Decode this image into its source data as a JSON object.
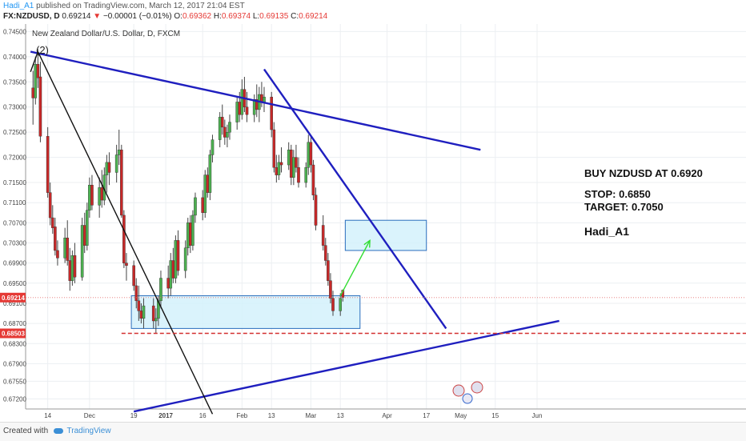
{
  "header": {
    "author": "Hadi_A1",
    "published_text": "published on TradingView.com, March 12, 2017 21:04 EST",
    "symbol": "FX:NZDUSD, D",
    "last": "0.69214",
    "change": "−0.00001 (−0.01%)",
    "o_label": "O:",
    "o": "0.69362",
    "h_label": "H:",
    "h": "0.69374",
    "l_label": "L:",
    "l": "0.69135",
    "c_label": "C:",
    "c": "0.69214"
  },
  "footer": {
    "created_with": "Created with",
    "brand": "TradingView"
  },
  "colors": {
    "bull": "#4caf50",
    "bear": "#c62828",
    "trend": "#1f1fbf",
    "zone_fill": "#d4f1fb",
    "zone_stroke": "#2a6ebd",
    "support_dash": "#d32f2f",
    "arrow": "#33dd33"
  },
  "chart_data": {
    "type": "candlestick",
    "title": "New Zealand Dollar/U.S. Dollar, D, FXCM",
    "ylim": [
      0.67,
      0.7465
    ],
    "y_ticks": [
      "0.74500",
      "0.74000",
      "0.73500",
      "0.73000",
      "0.72500",
      "0.72000",
      "0.71500",
      "0.71100",
      "0.70700",
      "0.70300",
      "0.69900",
      "0.69500",
      "0.69100",
      "0.68700",
      "0.68300",
      "0.67900",
      "0.67550",
      "0.67200"
    ],
    "x_ticks": [
      "14",
      "Dec",
      "19",
      "2017",
      "16",
      "Feb",
      "13",
      "Mar",
      "13",
      "Apr",
      "17",
      "May",
      "15",
      "Jun"
    ],
    "last_price": {
      "label": "0.69214",
      "value": 0.69214
    },
    "stop_price": {
      "label": "0.68503",
      "value": 0.68503
    },
    "candles": [
      {
        "date": "2016-11-08",
        "o": 0.7338,
        "h": 0.7372,
        "l": 0.7265,
        "c": 0.7318
      },
      {
        "date": "2016-11-09",
        "o": 0.7318,
        "h": 0.74,
        "l": 0.7305,
        "c": 0.7385
      },
      {
        "date": "2016-11-10",
        "o": 0.7385,
        "h": 0.7415,
        "l": 0.7338,
        "c": 0.7358
      },
      {
        "date": "2016-11-11",
        "o": 0.736,
        "h": 0.739,
        "l": 0.723,
        "c": 0.7242
      },
      {
        "date": "2016-11-14",
        "o": 0.7242,
        "h": 0.726,
        "l": 0.712,
        "c": 0.713
      },
      {
        "date": "2016-11-15",
        "o": 0.713,
        "h": 0.715,
        "l": 0.7065,
        "c": 0.708
      },
      {
        "date": "2016-11-16",
        "o": 0.708,
        "h": 0.7105,
        "l": 0.7048,
        "c": 0.706
      },
      {
        "date": "2016-11-17",
        "o": 0.7062,
        "h": 0.708,
        "l": 0.7005,
        "c": 0.7015
      },
      {
        "date": "2016-11-18",
        "o": 0.7015,
        "h": 0.7035,
        "l": 0.6985,
        "c": 0.7
      },
      {
        "date": "2016-11-21",
        "o": 0.7,
        "h": 0.706,
        "l": 0.699,
        "c": 0.704
      },
      {
        "date": "2016-11-22",
        "o": 0.704,
        "h": 0.7075,
        "l": 0.6985,
        "c": 0.6995
      },
      {
        "date": "2016-11-23",
        "o": 0.6995,
        "h": 0.702,
        "l": 0.6935,
        "c": 0.6955
      },
      {
        "date": "2016-11-24",
        "o": 0.6955,
        "h": 0.7015,
        "l": 0.6945,
        "c": 0.7005
      },
      {
        "date": "2016-11-25",
        "o": 0.7005,
        "h": 0.703,
        "l": 0.695,
        "c": 0.6962
      },
      {
        "date": "2016-11-28",
        "o": 0.6962,
        "h": 0.708,
        "l": 0.6955,
        "c": 0.7065
      },
      {
        "date": "2016-11-29",
        "o": 0.7065,
        "h": 0.709,
        "l": 0.701,
        "c": 0.7025
      },
      {
        "date": "2016-11-30",
        "o": 0.7025,
        "h": 0.711,
        "l": 0.7015,
        "c": 0.7095
      },
      {
        "date": "2016-12-01",
        "o": 0.7095,
        "h": 0.716,
        "l": 0.708,
        "c": 0.7145
      },
      {
        "date": "2016-12-02",
        "o": 0.7145,
        "h": 0.7165,
        "l": 0.7095,
        "c": 0.7105
      },
      {
        "date": "2016-12-05",
        "o": 0.7105,
        "h": 0.716,
        "l": 0.708,
        "c": 0.714
      },
      {
        "date": "2016-12-06",
        "o": 0.714,
        "h": 0.7175,
        "l": 0.71,
        "c": 0.7115
      },
      {
        "date": "2016-12-07",
        "o": 0.7115,
        "h": 0.718,
        "l": 0.7105,
        "c": 0.7165
      },
      {
        "date": "2016-12-08",
        "o": 0.7165,
        "h": 0.7205,
        "l": 0.713,
        "c": 0.719
      },
      {
        "date": "2016-12-09",
        "o": 0.719,
        "h": 0.721,
        "l": 0.7145,
        "c": 0.717
      },
      {
        "date": "2016-12-12",
        "o": 0.717,
        "h": 0.7225,
        "l": 0.715,
        "c": 0.7205
      },
      {
        "date": "2016-12-13",
        "o": 0.7205,
        "h": 0.7255,
        "l": 0.7185,
        "c": 0.7215
      },
      {
        "date": "2016-12-14",
        "o": 0.7215,
        "h": 0.7225,
        "l": 0.708,
        "c": 0.7085
      },
      {
        "date": "2016-12-15",
        "o": 0.7085,
        "h": 0.7095,
        "l": 0.698,
        "c": 0.699
      },
      {
        "date": "2016-12-16",
        "o": 0.699,
        "h": 0.701,
        "l": 0.6955,
        "c": 0.6985
      },
      {
        "date": "2016-12-19",
        "o": 0.6985,
        "h": 0.6995,
        "l": 0.6935,
        "c": 0.6945
      },
      {
        "date": "2016-12-20",
        "o": 0.6945,
        "h": 0.696,
        "l": 0.69,
        "c": 0.6915
      },
      {
        "date": "2016-12-21",
        "o": 0.6915,
        "h": 0.6945,
        "l": 0.6875,
        "c": 0.6895
      },
      {
        "date": "2016-12-22",
        "o": 0.6895,
        "h": 0.691,
        "l": 0.687,
        "c": 0.688
      },
      {
        "date": "2016-12-23",
        "o": 0.688,
        "h": 0.692,
        "l": 0.686,
        "c": 0.6905
      },
      {
        "date": "2016-12-27",
        "o": 0.6905,
        "h": 0.692,
        "l": 0.686,
        "c": 0.6875
      },
      {
        "date": "2016-12-28",
        "o": 0.6875,
        "h": 0.69,
        "l": 0.685,
        "c": 0.688
      },
      {
        "date": "2016-12-29",
        "o": 0.688,
        "h": 0.6925,
        "l": 0.6865,
        "c": 0.6915
      },
      {
        "date": "2016-12-30",
        "o": 0.6915,
        "h": 0.6975,
        "l": 0.69,
        "c": 0.696
      },
      {
        "date": "2017-01-02",
        "o": 0.696,
        "h": 0.6985,
        "l": 0.692,
        "c": 0.694
      },
      {
        "date": "2017-01-03",
        "o": 0.694,
        "h": 0.701,
        "l": 0.6925,
        "c": 0.6995
      },
      {
        "date": "2017-01-04",
        "o": 0.6995,
        "h": 0.702,
        "l": 0.695,
        "c": 0.696
      },
      {
        "date": "2017-01-05",
        "o": 0.696,
        "h": 0.7045,
        "l": 0.695,
        "c": 0.7035
      },
      {
        "date": "2017-01-06",
        "o": 0.7035,
        "h": 0.7055,
        "l": 0.6965,
        "c": 0.6975
      },
      {
        "date": "2017-01-09",
        "o": 0.6975,
        "h": 0.7035,
        "l": 0.696,
        "c": 0.702
      },
      {
        "date": "2017-01-10",
        "o": 0.702,
        "h": 0.708,
        "l": 0.7005,
        "c": 0.707
      },
      {
        "date": "2017-01-11",
        "o": 0.707,
        "h": 0.7085,
        "l": 0.701,
        "c": 0.7025
      },
      {
        "date": "2017-01-12",
        "o": 0.7025,
        "h": 0.7095,
        "l": 0.7015,
        "c": 0.7085
      },
      {
        "date": "2017-01-13",
        "o": 0.7085,
        "h": 0.713,
        "l": 0.707,
        "c": 0.712
      },
      {
        "date": "2017-01-16",
        "o": 0.712,
        "h": 0.7135,
        "l": 0.7075,
        "c": 0.709
      },
      {
        "date": "2017-01-17",
        "o": 0.709,
        "h": 0.7175,
        "l": 0.708,
        "c": 0.7165
      },
      {
        "date": "2017-01-18",
        "o": 0.7165,
        "h": 0.718,
        "l": 0.712,
        "c": 0.713
      },
      {
        "date": "2017-01-19",
        "o": 0.713,
        "h": 0.7215,
        "l": 0.7115,
        "c": 0.7205
      },
      {
        "date": "2017-01-20",
        "o": 0.7205,
        "h": 0.7245,
        "l": 0.719,
        "c": 0.7235
      },
      {
        "date": "2017-01-23",
        "o": 0.7235,
        "h": 0.729,
        "l": 0.722,
        "c": 0.728
      },
      {
        "date": "2017-01-24",
        "o": 0.728,
        "h": 0.7305,
        "l": 0.7245,
        "c": 0.726
      },
      {
        "date": "2017-01-25",
        "o": 0.726,
        "h": 0.7275,
        "l": 0.7225,
        "c": 0.724
      },
      {
        "date": "2017-01-26",
        "o": 0.724,
        "h": 0.7265,
        "l": 0.722,
        "c": 0.725
      },
      {
        "date": "2017-01-27",
        "o": 0.725,
        "h": 0.7285,
        "l": 0.7235,
        "c": 0.727
      },
      {
        "date": "2017-01-30",
        "o": 0.727,
        "h": 0.732,
        "l": 0.7255,
        "c": 0.731
      },
      {
        "date": "2017-01-31",
        "o": 0.731,
        "h": 0.733,
        "l": 0.727,
        "c": 0.7285
      },
      {
        "date": "2017-02-01",
        "o": 0.7285,
        "h": 0.7355,
        "l": 0.7275,
        "c": 0.7335
      },
      {
        "date": "2017-02-02",
        "o": 0.7335,
        "h": 0.736,
        "l": 0.729,
        "c": 0.73
      },
      {
        "date": "2017-02-03",
        "o": 0.73,
        "h": 0.733,
        "l": 0.727,
        "c": 0.7285
      },
      {
        "date": "2017-02-06",
        "o": 0.7285,
        "h": 0.7325,
        "l": 0.727,
        "c": 0.7315
      },
      {
        "date": "2017-02-07",
        "o": 0.7315,
        "h": 0.7345,
        "l": 0.728,
        "c": 0.7295
      },
      {
        "date": "2017-02-08",
        "o": 0.7295,
        "h": 0.734,
        "l": 0.727,
        "c": 0.7325
      },
      {
        "date": "2017-02-09",
        "o": 0.7325,
        "h": 0.735,
        "l": 0.73,
        "c": 0.731
      },
      {
        "date": "2017-02-10",
        "o": 0.731,
        "h": 0.734,
        "l": 0.729,
        "c": 0.732
      },
      {
        "date": "2017-02-13",
        "o": 0.732,
        "h": 0.733,
        "l": 0.724,
        "c": 0.7255
      },
      {
        "date": "2017-02-14",
        "o": 0.7255,
        "h": 0.727,
        "l": 0.717,
        "c": 0.718
      },
      {
        "date": "2017-02-15",
        "o": 0.718,
        "h": 0.7205,
        "l": 0.715,
        "c": 0.7165
      },
      {
        "date": "2017-02-16",
        "o": 0.7165,
        "h": 0.7205,
        "l": 0.7155,
        "c": 0.719
      },
      {
        "date": "2017-02-17",
        "o": 0.719,
        "h": 0.722,
        "l": 0.717,
        "c": 0.7185
      },
      {
        "date": "2017-02-20",
        "o": 0.7185,
        "h": 0.723,
        "l": 0.7175,
        "c": 0.7215
      },
      {
        "date": "2017-02-21",
        "o": 0.7215,
        "h": 0.7225,
        "l": 0.7145,
        "c": 0.716
      },
      {
        "date": "2017-02-22",
        "o": 0.716,
        "h": 0.7215,
        "l": 0.7145,
        "c": 0.72
      },
      {
        "date": "2017-02-23",
        "o": 0.72,
        "h": 0.7225,
        "l": 0.717,
        "c": 0.718
      },
      {
        "date": "2017-02-24",
        "o": 0.718,
        "h": 0.72,
        "l": 0.714,
        "c": 0.715
      },
      {
        "date": "2017-02-27",
        "o": 0.715,
        "h": 0.719,
        "l": 0.714,
        "c": 0.718
      },
      {
        "date": "2017-02-28",
        "o": 0.718,
        "h": 0.7245,
        "l": 0.7165,
        "c": 0.723
      },
      {
        "date": "2017-03-01",
        "o": 0.723,
        "h": 0.724,
        "l": 0.717,
        "c": 0.7185
      },
      {
        "date": "2017-03-02",
        "o": 0.7185,
        "h": 0.7195,
        "l": 0.7115,
        "c": 0.7125
      },
      {
        "date": "2017-03-03",
        "o": 0.7125,
        "h": 0.714,
        "l": 0.7055,
        "c": 0.7065
      },
      {
        "date": "2017-03-06",
        "o": 0.7065,
        "h": 0.7085,
        "l": 0.7015,
        "c": 0.7025
      },
      {
        "date": "2017-03-07",
        "o": 0.7025,
        "h": 0.704,
        "l": 0.6985,
        "c": 0.6995
      },
      {
        "date": "2017-03-08",
        "o": 0.6995,
        "h": 0.701,
        "l": 0.6945,
        "c": 0.6955
      },
      {
        "date": "2017-03-09",
        "o": 0.6955,
        "h": 0.697,
        "l": 0.691,
        "c": 0.692
      },
      {
        "date": "2017-03-10",
        "o": 0.692,
        "h": 0.6935,
        "l": 0.6885,
        "c": 0.6895
      },
      {
        "date": "2017-03-13",
        "o": 0.6895,
        "h": 0.693,
        "l": 0.6885,
        "c": 0.692
      },
      {
        "date": "2017-03-14",
        "o": 0.69362,
        "h": 0.69374,
        "l": 0.69135,
        "c": 0.69214
      }
    ],
    "trend_lines": [
      {
        "name": "upper-resistance",
        "from": [
          "2016-11-07",
          0.741
        ],
        "to": [
          "2017-05-09",
          0.7215
        ]
      },
      {
        "name": "steep-resistance",
        "from": [
          "2017-02-10",
          0.7375
        ],
        "to": [
          "2017-04-25",
          0.686
        ]
      },
      {
        "name": "rising-support",
        "from": [
          "2016-12-19",
          0.6695
        ],
        "to": [
          "2017-06-10",
          0.6875
        ]
      },
      {
        "name": "wave-line",
        "from": [
          "2016-11-07",
          0.737
        ],
        "to": [
          "2016-11-10",
          0.741
        ]
      },
      {
        "name": "falling-black",
        "from": [
          "2016-11-10",
          0.741
        ],
        "to": [
          "2017-01-20",
          0.669
        ]
      }
    ],
    "zones": [
      {
        "name": "support-zone",
        "from": [
          "2016-12-18",
          0.6925
        ],
        "to": [
          "2017-03-21",
          0.686
        ]
      },
      {
        "name": "target-zone",
        "from": [
          "2017-03-15",
          0.7075
        ],
        "to": [
          "2017-04-17",
          0.7015
        ]
      }
    ],
    "arrow": {
      "from": [
        "2017-03-13",
        0.6925
      ],
      "to": [
        "2017-03-25",
        0.7035
      ]
    },
    "annotations": {
      "wave_label": "(2)",
      "buy": "BUY NZDUSD AT 0.6920",
      "stop": "STOP: 0.6850",
      "target": "TARGET: 0.7050",
      "author": "Hadi_A1"
    }
  }
}
